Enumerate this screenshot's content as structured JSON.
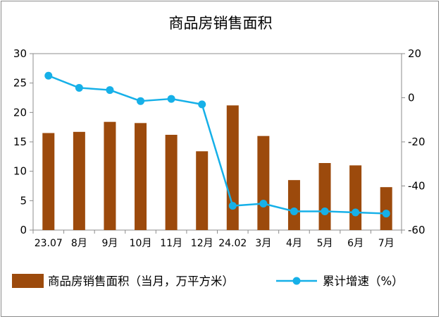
{
  "chart_data": {
    "type": "bar",
    "title": "商品房销售面积",
    "categories": [
      "23.07",
      "8月",
      "9月",
      "10月",
      "11月",
      "12月",
      "24.02",
      "3月",
      "4月",
      "5月",
      "6月",
      "7月"
    ],
    "series": [
      {
        "name": "商品房销售面积（当月，万平方米）",
        "type": "bar",
        "axis": "left",
        "color": "#9c4a0c",
        "values": [
          16.5,
          16.7,
          18.4,
          18.2,
          16.2,
          13.4,
          21.2,
          16.0,
          8.5,
          11.4,
          11.0,
          7.3
        ]
      },
      {
        "name": "累计增速（%）",
        "type": "line",
        "axis": "right",
        "color": "#16b0e8",
        "values": [
          10,
          4.5,
          3.5,
          -1.5,
          -0.5,
          -3,
          -49,
          -48,
          -51.5,
          -51.5,
          -52,
          -52.5
        ]
      }
    ],
    "y_left": {
      "min": 0,
      "max": 30,
      "ticks": [
        0,
        5,
        10,
        15,
        20,
        25,
        30
      ]
    },
    "y_right": {
      "min": -60,
      "max": 20,
      "ticks": [
        -60,
        -40,
        -20,
        0,
        20
      ]
    },
    "grid": false,
    "legend_position": "bottom"
  }
}
